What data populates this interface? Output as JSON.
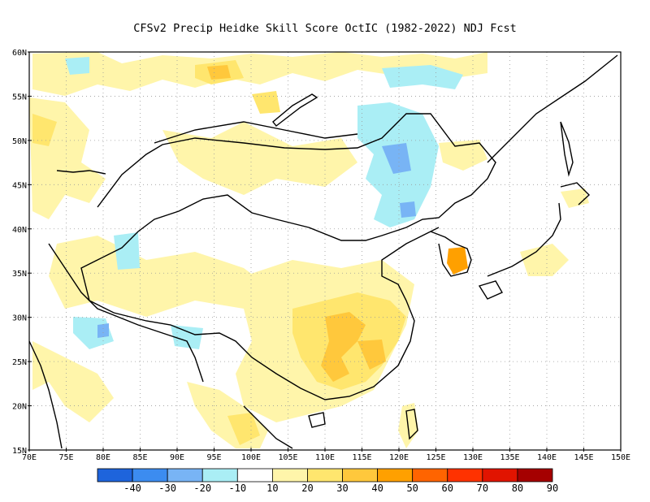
{
  "title": "CFSv2 Precip Heidke Skill Score OctIC (1982-2022) NDJ Fcst",
  "map": {
    "lon_range": [
      70,
      150
    ],
    "lat_range": [
      15,
      60
    ],
    "lat_ticks": [
      "60N",
      "55N",
      "50N",
      "45N",
      "40N",
      "35N",
      "30N",
      "25N",
      "20N",
      "15N"
    ],
    "lat_tick_values": [
      60,
      55,
      50,
      45,
      40,
      35,
      30,
      25,
      20,
      15
    ],
    "lon_ticks": [
      "70E",
      "75E",
      "80E",
      "85E",
      "90E",
      "95E",
      "100E",
      "105E",
      "110E",
      "115E",
      "120E",
      "125E",
      "130E",
      "135E",
      "140E",
      "145E",
      "150E"
    ],
    "lon_tick_values": [
      70,
      75,
      80,
      85,
      90,
      95,
      100,
      105,
      110,
      115,
      120,
      125,
      130,
      135,
      140,
      145,
      150
    ],
    "grid": "dotted"
  },
  "colorbar": {
    "labels": [
      "-40",
      "-30",
      "-20",
      "-10",
      "10",
      "20",
      "30",
      "40",
      "50",
      "60",
      "70",
      "80",
      "90"
    ],
    "colors": [
      "#1e64dc",
      "#3c8cf0",
      "#78b4f5",
      "#aaeef5",
      "#ffffff",
      "#fff5aa",
      "#ffe66e",
      "#ffc83c",
      "#ffa000",
      "#ff6400",
      "#ff3200",
      "#e11400",
      "#a50000"
    ]
  },
  "colors": {
    "light_yellow": "#fff5aa",
    "yellow": "#ffe66e",
    "gold": "#ffc83c",
    "orange": "#ffa000",
    "light_cyan": "#aaeef5",
    "light_blue": "#78b4f5",
    "blue": "#3c8cf0"
  }
}
